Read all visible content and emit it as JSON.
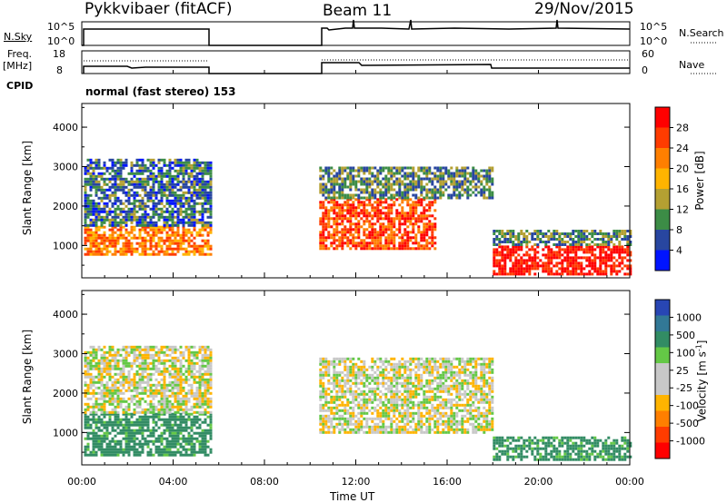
{
  "header": {
    "radar": "Pykkvibaer (fitACF)",
    "beam": "Beam 11",
    "date": "29/Nov/2015"
  },
  "nsky_panel": {
    "left_label": "N.Sky",
    "left_ticks": [
      "10^5",
      "10^0"
    ],
    "right_label": "N.Search",
    "right_ticks": [
      "10^5",
      "10^0"
    ]
  },
  "freq_panel": {
    "left_label_1": "Freq.",
    "left_label_2": "[MHz]",
    "left_ticks": [
      "18",
      "8"
    ],
    "right_label": "Nave",
    "right_ticks": [
      "60",
      "0"
    ]
  },
  "cpid": {
    "label": "CPID",
    "value": "normal (fast stereo) 153"
  },
  "x_axis": {
    "label": "Time UT",
    "ticks": [
      "00:00",
      "04:00",
      "08:00",
      "12:00",
      "16:00",
      "20:00",
      "00:00"
    ]
  },
  "power_panel": {
    "ylabel": "Slant Range [km]",
    "yticks": [
      "4000",
      "3000",
      "2000",
      "1000"
    ],
    "colorbar_label": "Power [dB]",
    "colorbar_ticks": [
      "28",
      "24",
      "20",
      "16",
      "12",
      "8",
      "4"
    ],
    "colors": [
      "#ff0000",
      "#ff3c00",
      "#ff7f00",
      "#ffb400",
      "#b4a032",
      "#3c8c46",
      "#2846a0",
      "#0014ff"
    ]
  },
  "velocity_panel": {
    "ylabel": "Slant Range [km]",
    "yticks": [
      "4000",
      "3000",
      "2000",
      "1000"
    ],
    "colorbar_label": "Velocity [m s",
    "colorbar_label_sup": "-1",
    "colorbar_label_end": "]",
    "colorbar_ticks": [
      "1000",
      "500",
      "100",
      "25",
      "-25",
      "-100",
      "-500",
      "-1000"
    ],
    "colors": [
      "#2846b4",
      "#327896",
      "#328c64",
      "#64c846",
      "#c8c8c8",
      "#c8c8c8",
      "#ffb400",
      "#ff7f00",
      "#ff3c00",
      "#ff0000"
    ]
  },
  "chart_data": {
    "type": "heatmap",
    "x_unit": "hours UT",
    "x_range": [
      0,
      24
    ],
    "y_unit": "km",
    "y_range": [
      180,
      4600
    ],
    "data_gaps_hours": [
      [
        5.6,
        10.4
      ]
    ],
    "power_regions_db": [
      {
        "t_start": 0.1,
        "t_end": 5.6,
        "r_start": 800,
        "r_end": 1500,
        "power": 22
      },
      {
        "t_start": 0.1,
        "t_end": 5.6,
        "r_start": 1500,
        "r_end": 3200,
        "power": 8
      },
      {
        "t_start": 10.4,
        "t_end": 15.5,
        "r_start": 900,
        "r_end": 2200,
        "power": 26
      },
      {
        "t_start": 10.4,
        "t_end": 18.0,
        "r_start": 2200,
        "r_end": 3000,
        "power": 10
      },
      {
        "t_start": 18.0,
        "t_end": 24.0,
        "r_start": 300,
        "r_end": 1000,
        "power": 30
      },
      {
        "t_start": 18.0,
        "t_end": 24.0,
        "r_start": 1000,
        "r_end": 1400,
        "power": 10
      }
    ],
    "velocity_regions_mps": [
      {
        "t_start": 0.1,
        "t_end": 5.6,
        "r_start": 400,
        "r_end": 1500,
        "velocity": 100
      },
      {
        "t_start": 0.1,
        "t_end": 5.6,
        "r_start": 1500,
        "r_end": 3200,
        "velocity": 0
      },
      {
        "t_start": 10.4,
        "t_end": 18.0,
        "r_start": 1000,
        "r_end": 2900,
        "velocity": 0
      },
      {
        "t_start": 18.0,
        "t_end": 24.0,
        "r_start": 300,
        "r_end": 900,
        "velocity": 100
      }
    ]
  }
}
